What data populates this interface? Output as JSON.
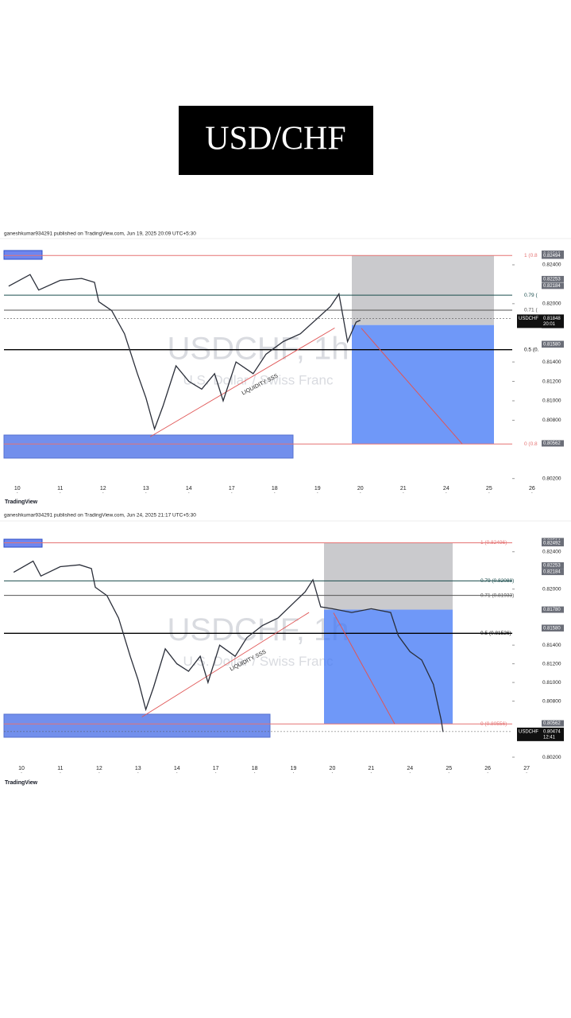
{
  "title": "USD/CHF",
  "chart_data": [
    {
      "type": "line",
      "header": "ganeshkumar934291 published on TradingView.com, Jun 19, 2025 20:09 UTC+5:30",
      "watermark": "USDCHF, 1h",
      "watermark_sub": "U.S. Dollar / Swiss Franc",
      "annotation": "LIQUIDITY SSS",
      "footer": "TradingView",
      "color": "#2a2e39",
      "x": [
        -0.2,
        0.3,
        0.5,
        1.0,
        1.5,
        1.8,
        1.9,
        2.2,
        2.5,
        2.8,
        3.0,
        3.2,
        3.4,
        3.7,
        4.0,
        4.3,
        4.6,
        4.8,
        5.1,
        5.5,
        5.8,
        6.2,
        6.6,
        7.0,
        7.3,
        7.5,
        7.7,
        7.9,
        8.0
      ],
      "values": [
        0.8218,
        0.823,
        0.8214,
        0.8224,
        0.8226,
        0.8222,
        0.8202,
        0.8193,
        0.8169,
        0.8128,
        0.8103,
        0.8071,
        0.8095,
        0.8136,
        0.812,
        0.8112,
        0.8128,
        0.81,
        0.814,
        0.8128,
        0.8148,
        0.8161,
        0.8169,
        0.8185,
        0.8197,
        0.821,
        0.8161,
        0.8181,
        0.8183
      ],
      "xlim": [
        -0.31,
        11.54
      ],
      "xticks": [
        {
          "value": 0,
          "label": "10"
        },
        {
          "value": 1,
          "label": "11"
        },
        {
          "value": 2,
          "label": "12"
        },
        {
          "value": 3,
          "label": "13"
        },
        {
          "value": 4,
          "label": "14"
        },
        {
          "value": 5,
          "label": "17"
        },
        {
          "value": 6,
          "label": "18"
        },
        {
          "value": 7,
          "label": "19"
        },
        {
          "value": 8,
          "label": "20"
        },
        {
          "value": 9,
          "label": "21"
        },
        {
          "value": 10,
          "label": "24"
        },
        {
          "value": 11,
          "label": "25"
        },
        {
          "value": 12,
          "label": "26"
        }
      ],
      "ylim": [
        0.8005,
        0.8267
      ],
      "yticks": [
        {
          "value": 0.824,
          "label": "0.82400"
        },
        {
          "value": 0.82,
          "label": "0.82000"
        },
        {
          "value": 0.814,
          "label": "0.81400"
        },
        {
          "value": 0.812,
          "label": "0.81200"
        },
        {
          "value": 0.81,
          "label": "0.81000"
        },
        {
          "value": 0.808,
          "label": "0.80800"
        },
        {
          "value": 0.802,
          "label": "0.80200"
        }
      ],
      "levels": [
        {
          "value": 0.82496,
          "label": "1 (0.8",
          "color": "#e57373"
        },
        {
          "value": 0.82088,
          "label": "0.79 (",
          "color": "#1b4d4d"
        },
        {
          "value": 0.81933,
          "label": "0.71 (",
          "color": "#555555"
        },
        {
          "value": 0.81526,
          "label": "0.5 (0.",
          "color": "#000000"
        },
        {
          "value": 0.80556,
          "label": "0 (0.8",
          "color": "#e57373"
        }
      ],
      "price_labels": [
        {
          "value": 0.82514,
          "label": "0.82514"
        },
        {
          "value": 0.82513,
          "label": "0.82513"
        },
        {
          "value": 0.82494,
          "label": "0.82494"
        },
        {
          "value": 0.82253,
          "label": "0.82253"
        },
        {
          "value": 0.82184,
          "label": "0.82184"
        },
        {
          "value": 0.8178,
          "label": "0.81780"
        },
        {
          "value": 0.81585,
          "label": "0.81585"
        },
        {
          "value": 0.8158,
          "label": "0.81580"
        },
        {
          "value": 0.80562,
          "label": "0.80562"
        }
      ],
      "current": {
        "symbol": "USDCHF",
        "value": 0.81848,
        "label": "0.81848",
        "time": "20:01"
      }
    },
    {
      "type": "line",
      "header": "ganeshkumar934291 published on TradingView.com, Jun 24, 2025 21:17 UTC+5:30",
      "watermark": "USDCHF, 1h",
      "watermark_sub": "U.S. Dollar / Swiss Franc",
      "annotation": "LIQUIDITY SSS",
      "footer": "TradingView",
      "color": "#2a2e39",
      "x": [
        -0.2,
        0.3,
        0.5,
        1.0,
        1.5,
        1.8,
        1.9,
        2.2,
        2.5,
        2.8,
        3.0,
        3.2,
        3.4,
        3.7,
        4.0,
        4.3,
        4.6,
        4.8,
        5.1,
        5.5,
        5.8,
        6.2,
        6.6,
        7.0,
        7.3,
        7.5,
        7.7,
        8.0,
        8.5,
        9.0,
        9.5,
        9.7,
        10.0,
        10.3,
        10.6,
        10.8,
        10.85
      ],
      "values": [
        0.8218,
        0.823,
        0.8214,
        0.8224,
        0.8226,
        0.8222,
        0.8202,
        0.8193,
        0.8169,
        0.8128,
        0.8103,
        0.8071,
        0.8095,
        0.8136,
        0.812,
        0.8112,
        0.8128,
        0.81,
        0.814,
        0.8128,
        0.8148,
        0.8161,
        0.8169,
        0.8185,
        0.8197,
        0.821,
        0.8181,
        0.8179,
        0.8175,
        0.8179,
        0.8175,
        0.815,
        0.8133,
        0.8124,
        0.8098,
        0.806,
        0.8047
      ],
      "xlim": [
        -0.45,
        12.63
      ],
      "xticks": [
        {
          "value": 0,
          "label": "10"
        },
        {
          "value": 1,
          "label": "11"
        },
        {
          "value": 2,
          "label": "12"
        },
        {
          "value": 3,
          "label": "13"
        },
        {
          "value": 4,
          "label": "14"
        },
        {
          "value": 5,
          "label": "17"
        },
        {
          "value": 6,
          "label": "18"
        },
        {
          "value": 7,
          "label": "19"
        },
        {
          "value": 8,
          "label": "20"
        },
        {
          "value": 9,
          "label": "21"
        },
        {
          "value": 10,
          "label": "24"
        },
        {
          "value": 11,
          "label": "25"
        },
        {
          "value": 12,
          "label": "26"
        },
        {
          "value": 13,
          "label": "27"
        }
      ],
      "ylim": [
        0.8003,
        0.8273
      ],
      "yticks": [
        {
          "value": 0.824,
          "label": "0.82400"
        },
        {
          "value": 0.82,
          "label": "0.82000"
        },
        {
          "value": 0.814,
          "label": "0.81400"
        },
        {
          "value": 0.812,
          "label": "0.81200"
        },
        {
          "value": 0.81,
          "label": "0.81000"
        },
        {
          "value": 0.808,
          "label": "0.80800"
        },
        {
          "value": 0.802,
          "label": "0.80200"
        }
      ],
      "levels": [
        {
          "value": 0.82496,
          "label": "1 (0.82496)",
          "color": "#e57373"
        },
        {
          "value": 0.82088,
          "label": "0.79 (0.82088)",
          "color": "#1b4d4d"
        },
        {
          "value": 0.81933,
          "label": "0.71 (0.81933)",
          "color": "#555555"
        },
        {
          "value": 0.81526,
          "label": "0.5 (0.81526)",
          "color": "#000000"
        },
        {
          "value": 0.80556,
          "label": "0 (0.80556)",
          "color": "#e57373"
        }
      ],
      "price_labels": [
        {
          "value": 0.82514,
          "label": "0.82514"
        },
        {
          "value": 0.82494,
          "label": "0.82494"
        },
        {
          "value": 0.82492,
          "label": "0.82492"
        },
        {
          "value": 0.82253,
          "label": "0.82253"
        },
        {
          "value": 0.82184,
          "label": "0.82184"
        },
        {
          "value": 0.8178,
          "label": "0.81780"
        },
        {
          "value": 0.81585,
          "label": "0.81585"
        },
        {
          "value": 0.8158,
          "label": "0.81580"
        },
        {
          "value": 0.80562,
          "label": "0.80562"
        }
      ],
      "current": {
        "symbol": "USDCHF",
        "value": 0.80474,
        "label": "0.80474",
        "time": "12:41"
      }
    }
  ]
}
